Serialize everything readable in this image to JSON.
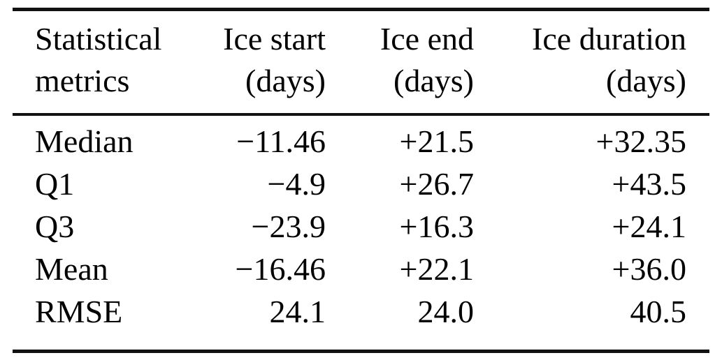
{
  "table": {
    "name": "ice-phenology-statistics",
    "columns": [
      {
        "line1": "Statistical",
        "line2": "metrics"
      },
      {
        "line1": "Ice start",
        "line2": "(days)"
      },
      {
        "line1": "Ice end",
        "line2": "(days)"
      },
      {
        "line1": "Ice duration",
        "line2": "(days)"
      }
    ],
    "rows": [
      {
        "metric": "Median",
        "ice_start": "−11.46",
        "ice_end": "+21.5",
        "ice_duration": "+32.35"
      },
      {
        "metric": "Q1",
        "ice_start": "−4.9",
        "ice_end": "+26.7",
        "ice_duration": "+43.5"
      },
      {
        "metric": "Q3",
        "ice_start": "−23.9",
        "ice_end": "+16.3",
        "ice_duration": "+24.1"
      },
      {
        "metric": "Mean",
        "ice_start": "−16.46",
        "ice_end": "+22.1",
        "ice_duration": "+36.0"
      },
      {
        "metric": "RMSE",
        "ice_start": "24.1",
        "ice_end": "24.0",
        "ice_duration": "40.5"
      }
    ],
    "colors": {
      "text": "#000000",
      "rule": "#111111",
      "background": "#ffffff"
    }
  }
}
